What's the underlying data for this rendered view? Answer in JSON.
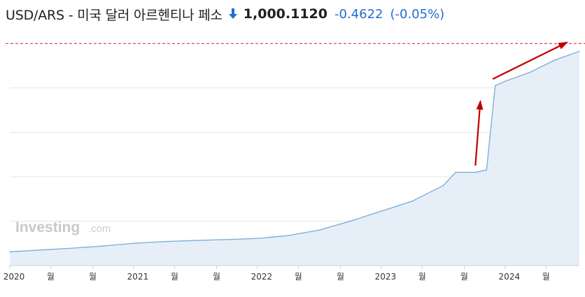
{
  "header": {
    "title": "USD/ARS - 미국 달러 아르헨티나 페소",
    "price": "1,000.1120",
    "change": "-0.4622",
    "change_pct": "(-0.05%)",
    "direction_icon": "arrow-down-icon"
  },
  "watermark": {
    "brand": "Investing",
    "suffix": ".com"
  },
  "colors": {
    "accent": "#1f6fd1",
    "line": "#7fb0d8",
    "area": "#e6eff8",
    "reference_line": "#cc2222",
    "annotation_arrow": "#c00000",
    "grid": "#e6e6e6"
  },
  "chart_data": {
    "type": "area",
    "x_tick_labels": [
      "2020",
      "월",
      "월",
      "2021",
      "월",
      "월",
      "2022",
      "월",
      "월",
      "2023",
      "월",
      "월",
      "2024",
      "월"
    ],
    "x_ticks": [
      2020.0,
      2020.33,
      2020.67,
      2021.0,
      2021.33,
      2021.67,
      2022.0,
      2022.33,
      2022.67,
      2023.0,
      2023.33,
      2023.67,
      2024.0,
      2024.33
    ],
    "xlim": [
      2020.0,
      2024.6
    ],
    "ylim": [
      0,
      1070
    ],
    "y_gridlines": [
      200,
      400,
      600,
      800
    ],
    "reference_line_value": 1000,
    "grid": true,
    "series": [
      {
        "x": [
          2020.0,
          2020.25,
          2020.5,
          2020.75,
          2021.0,
          2021.25,
          2021.5,
          2021.75,
          2022.0,
          2022.25,
          2022.5,
          2022.75,
          2023.0,
          2023.25,
          2023.5,
          2023.6,
          2023.68,
          2023.76,
          2023.85,
          2023.92,
          2024.0,
          2024.2,
          2024.4,
          2024.6
        ],
        "y": [
          62,
          70,
          78,
          88,
          100,
          108,
          113,
          117,
          122,
          135,
          160,
          200,
          245,
          290,
          360,
          420,
          420,
          420,
          430,
          810,
          830,
          870,
          925,
          965
        ]
      }
    ],
    "annotations": [
      {
        "type": "arrow",
        "from": [
          2023.76,
          450
        ],
        "to": [
          2023.8,
          740
        ]
      },
      {
        "type": "arrow",
        "from": [
          2023.9,
          840
        ],
        "to": [
          2024.5,
          1005
        ]
      }
    ]
  }
}
